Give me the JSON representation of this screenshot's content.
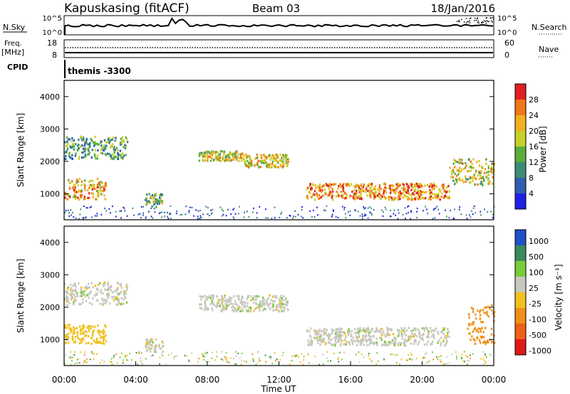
{
  "header": {
    "station": "Kapuskasing (fitACF)",
    "beam": "Beam 03",
    "date": "18/Jan/2016"
  },
  "strips": {
    "nsky_label": "N.Sky",
    "nsearch_label": "N.Search",
    "nsky_ticks": [
      "10^5",
      "10^0"
    ],
    "nsearch_ticks": [
      "10^5",
      "10^0"
    ],
    "freq_label": "Freq.",
    "freq_unit": "[MHz]",
    "freq_ticks": [
      "18",
      "8"
    ],
    "nave_label": "Nave",
    "nave_ticks": [
      "60",
      "0"
    ],
    "cpid_label": "CPID",
    "cpid_value": "themis -3300"
  },
  "chart_data": [
    {
      "type": "heatmap",
      "name": "power",
      "ylabel": "Slant Range [km]",
      "xlabel": "",
      "ylim": [
        200,
        4500
      ],
      "yticks": [
        "1000",
        "2000",
        "3000",
        "4000"
      ],
      "colorbar": {
        "label": "Power [dB]",
        "ticks": [
          "4",
          "8",
          "12",
          "16",
          "20",
          "24",
          "28"
        ],
        "colors": [
          "#1f1fe6",
          "#2f5fb0",
          "#3d8c78",
          "#5cae3a",
          "#c8d02a",
          "#f0b020",
          "#f07818",
          "#e02020"
        ]
      },
      "bands": [
        {
          "t0": 0.0,
          "t1": 2.3,
          "r0": 850,
          "r1": 1500,
          "level": 22
        },
        {
          "t0": 0.0,
          "t1": 3.5,
          "r0": 2100,
          "r1": 2800,
          "level": 12
        },
        {
          "t0": 4.5,
          "t1": 5.5,
          "r0": 620,
          "r1": 1050,
          "level": 14
        },
        {
          "t0": 7.5,
          "t1": 10.0,
          "r0": 2050,
          "r1": 2350,
          "level": 18
        },
        {
          "t0": 10.0,
          "t1": 12.5,
          "r0": 1850,
          "r1": 2250,
          "level": 20
        },
        {
          "t0": 13.5,
          "t1": 21.5,
          "r0": 850,
          "r1": 1350,
          "level": 24
        },
        {
          "t0": 21.5,
          "t1": 24.0,
          "r0": 1300,
          "r1": 2100,
          "level": 18
        }
      ]
    },
    {
      "type": "heatmap",
      "name": "velocity",
      "ylabel": "Slant Range [km]",
      "xlabel": "Time UT",
      "ylim": [
        200,
        4500
      ],
      "yticks": [
        "1000",
        "2000",
        "3000",
        "4000"
      ],
      "xticks": [
        "00:00",
        "04:00",
        "08:00",
        "12:00",
        "16:00",
        "20:00",
        "00:00"
      ],
      "colorbar": {
        "label": "Velocity [m s⁻¹]",
        "ticks": [
          "1000",
          "500",
          "100",
          "25",
          "-25",
          "-100",
          "-500",
          "-1000"
        ],
        "colors": [
          "#2050c8",
          "#3a8a5a",
          "#7acc3a",
          "#c8c8c0",
          "#f0c020",
          "#f09018",
          "#f06018",
          "#e01818"
        ]
      },
      "bands": [
        {
          "t0": 0.0,
          "t1": 2.3,
          "r0": 900,
          "r1": 1500,
          "level": -60
        },
        {
          "t0": 0.0,
          "t1": 3.5,
          "r0": 2100,
          "r1": 2800,
          "level": 0
        },
        {
          "t0": 4.5,
          "t1": 5.5,
          "r0": 650,
          "r1": 1050,
          "level": 0
        },
        {
          "t0": 7.5,
          "t1": 12.5,
          "r0": 1900,
          "r1": 2400,
          "level": 0
        },
        {
          "t0": 13.5,
          "t1": 21.5,
          "r0": 850,
          "r1": 1400,
          "level": 0
        },
        {
          "t0": 22.5,
          "t1": 24.0,
          "r0": 900,
          "r1": 2100,
          "level": -150
        }
      ]
    }
  ]
}
